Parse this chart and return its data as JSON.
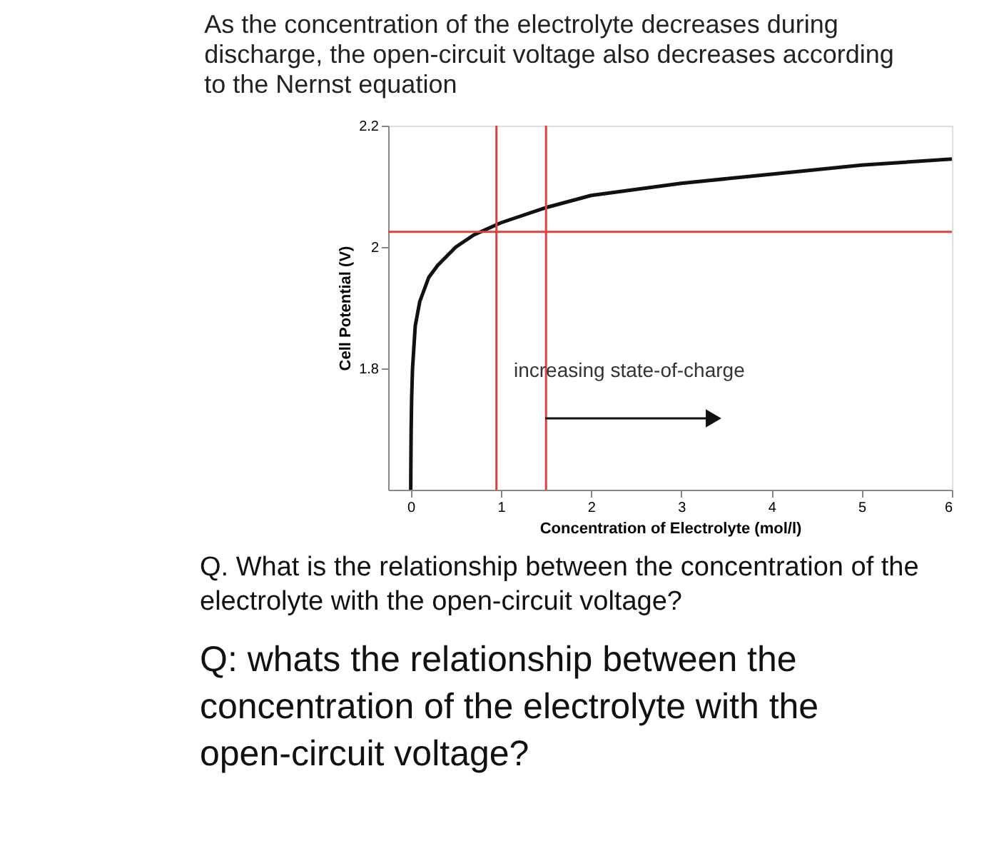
{
  "chart_data": {
    "type": "line",
    "title": "As the concentration of the electrolyte decreases during discharge, the open-circuit voltage also decreases according to the Nernst equation",
    "xlabel": "Concentration of Electrolyte (mol/l)",
    "ylabel": "Cell Potential (V)",
    "series": [
      {
        "color": "#111111",
        "x": [
          0,
          0.002,
          0.005,
          0.01,
          0.02,
          0.05,
          0.1,
          0.2,
          0.3,
          0.5,
          0.7,
          1,
          1.5,
          2,
          3,
          4,
          5,
          6
        ],
        "values": [
          1.6,
          1.65,
          1.7,
          1.75,
          1.8,
          1.87,
          1.91,
          1.95,
          1.97,
          2.0,
          2.02,
          2.04,
          2.065,
          2.085,
          2.105,
          2.12,
          2.135,
          2.145
        ]
      }
    ],
    "xlim": [
      -0.25,
      6
    ],
    "xticks": [
      0,
      1,
      2,
      3,
      4,
      5,
      6
    ],
    "ylim": [
      1.6,
      2.2
    ],
    "yticks": [
      1.8,
      2,
      2.2
    ],
    "ref_lines": [
      {
        "axis": "y",
        "value": 2.025,
        "color": "#e0413a"
      },
      {
        "axis": "x",
        "value": 0.95,
        "color": "#e0413a"
      },
      {
        "axis": "x",
        "value": 1.5,
        "color": "#e0413a"
      }
    ],
    "grid": false,
    "marker": "none",
    "line_style": "solid",
    "annotations": [
      "increasing state-of-charge",
      "Q. What is the relationship between the concentration of the electrolyte with the open-circuit voltage?",
      "Q: whats the relationship between the concentration of the electrolyte with the open-circuit voltage?"
    ]
  }
}
